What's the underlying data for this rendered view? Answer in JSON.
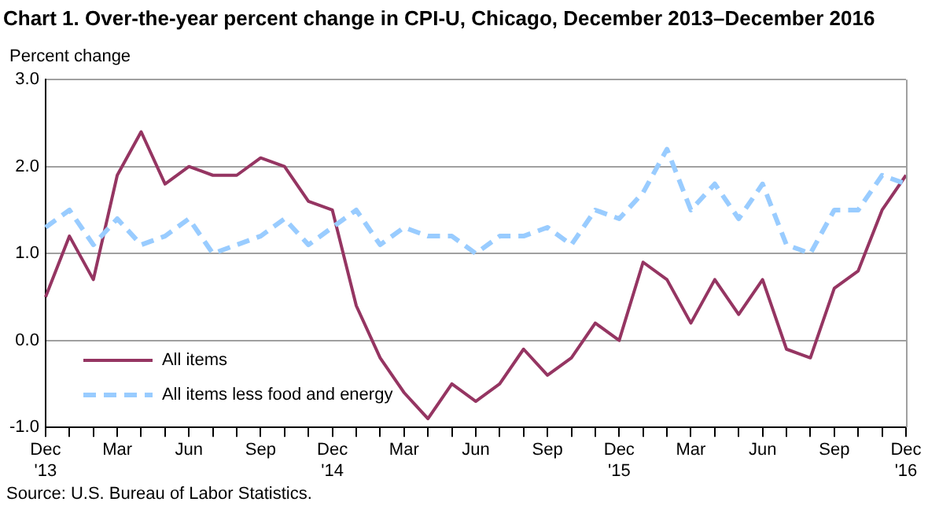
{
  "chart_data": {
    "type": "line",
    "title": "Chart 1. Over-the-year percent change in CPI-U, Chicago, December 2013–December 2016",
    "ylabel": "Percent change",
    "categories": [
      "Dec\n'13",
      null,
      null,
      "Mar",
      null,
      null,
      "Jun",
      null,
      null,
      "Sep",
      null,
      null,
      "Dec\n'14",
      null,
      null,
      "Mar",
      null,
      null,
      "Jun",
      null,
      null,
      "Sep",
      null,
      null,
      "Dec\n'15",
      null,
      null,
      "Mar",
      null,
      null,
      "Jun",
      null,
      null,
      "Sep",
      null,
      null,
      "Dec\n'16"
    ],
    "series": [
      {
        "name": "All items",
        "color": "#953562",
        "line_style": "solid",
        "values": [
          0.5,
          1.2,
          0.7,
          1.9,
          2.4,
          1.8,
          2.0,
          1.9,
          1.9,
          2.1,
          2.0,
          1.6,
          1.5,
          0.4,
          -0.2,
          -0.6,
          -0.9,
          -0.5,
          -0.7,
          -0.5,
          -0.1,
          -0.4,
          -0.2,
          0.2,
          0.0,
          0.9,
          0.7,
          0.2,
          0.7,
          0.3,
          0.7,
          -0.1,
          -0.2,
          0.6,
          0.8,
          1.5,
          1.9
        ]
      },
      {
        "name": "All items less food and energy",
        "color": "#99ccff",
        "line_style": "dashed",
        "values": [
          1.3,
          1.5,
          1.1,
          1.4,
          1.1,
          1.2,
          1.4,
          1.0,
          1.1,
          1.2,
          1.4,
          1.1,
          1.3,
          1.5,
          1.1,
          1.3,
          1.2,
          1.2,
          1.0,
          1.2,
          1.2,
          1.3,
          1.1,
          1.5,
          1.4,
          1.7,
          2.2,
          1.5,
          1.8,
          1.4,
          1.8,
          1.1,
          1.0,
          1.5,
          1.5,
          1.9,
          1.8
        ]
      }
    ],
    "ylim": [
      -1,
      3
    ],
    "yticks": [
      {
        "value": -1,
        "label": "-1.0"
      },
      {
        "value": 0,
        "label": "0.0"
      },
      {
        "value": 1,
        "label": "1.0"
      },
      {
        "value": 2,
        "label": "2.0"
      },
      {
        "value": 3,
        "label": "3.0"
      }
    ],
    "grid": "y",
    "legend": "bottom left",
    "marker": "none",
    "annotations": [
      "Source: U.S. Bureau of Labor Statistics."
    ]
  }
}
